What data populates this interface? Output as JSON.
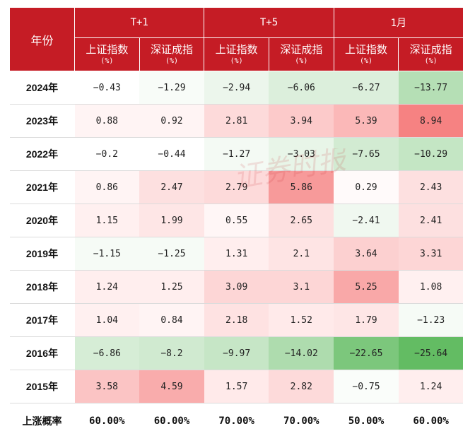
{
  "header": {
    "year_label": "年份",
    "groups": [
      {
        "label": "T+1",
        "cols": [
          "上证指数",
          "深证成指"
        ]
      },
      {
        "label": "T+5",
        "cols": [
          "上证指数",
          "深证成指"
        ]
      },
      {
        "label": "1月",
        "cols": [
          "上证指数",
          "深证成指"
        ]
      }
    ],
    "unit": "(%)"
  },
  "rows": [
    {
      "year": "2024年",
      "values": [
        "-0.43",
        "-1.29",
        "-2.94",
        "-6.06",
        "-6.27",
        "-13.77"
      ],
      "bg": [
        "#ffffff",
        "#f8fcf8",
        "#ecf6ec",
        "#dcefdc",
        "#dcefdc",
        "#b5dfb5"
      ]
    },
    {
      "year": "2023年",
      "values": [
        "0.88",
        "0.92",
        "2.81",
        "3.94",
        "5.39",
        "8.94"
      ],
      "bg": [
        "#fff4f4",
        "#fff4f4",
        "#fddada",
        "#fccaca",
        "#fbb8b8",
        "#f68282"
      ]
    },
    {
      "year": "2022年",
      "values": [
        "-0.2",
        "-0.44",
        "-1.27",
        "-3.03",
        "-7.65",
        "-10.29"
      ],
      "bg": [
        "#ffffff",
        "#ffffff",
        "#f4faf4",
        "#e8f5e8",
        "#d2ebd2",
        "#c4e6c4"
      ]
    },
    {
      "year": "2021年",
      "values": [
        "0.86",
        "2.47",
        "2.79",
        "5.86",
        "0.29",
        "2.43"
      ],
      "bg": [
        "#fff4f4",
        "#fde0e0",
        "#fddada",
        "#f79a9a",
        "#fffafa",
        "#fde0e0"
      ]
    },
    {
      "year": "2020年",
      "values": [
        "1.15",
        "1.99",
        "0.55",
        "2.65",
        "-2.41",
        "2.41"
      ],
      "bg": [
        "#fff0f0",
        "#fee6e6",
        "#fff6f6",
        "#fde0e0",
        "#f0f8f0",
        "#fde0e0"
      ]
    },
    {
      "year": "2019年",
      "values": [
        "-1.15",
        "-1.25",
        "1.31",
        "2.1",
        "3.64",
        "3.31"
      ],
      "bg": [
        "#f6fbf6",
        "#f6fbf6",
        "#ffeeee",
        "#fee4e4",
        "#fcd0d0",
        "#fdd6d6"
      ]
    },
    {
      "year": "2018年",
      "values": [
        "1.24",
        "1.25",
        "3.09",
        "3.1",
        "5.25",
        "1.08"
      ],
      "bg": [
        "#ffeeee",
        "#ffeeee",
        "#fdd6d6",
        "#fdd6d6",
        "#f9a8a8",
        "#fff0f0"
      ]
    },
    {
      "year": "2017年",
      "values": [
        "1.04",
        "0.84",
        "2.18",
        "1.52",
        "1.79",
        "-1.23"
      ],
      "bg": [
        "#fff0f0",
        "#fff4f4",
        "#fee2e2",
        "#ffeaea",
        "#fee6e6",
        "#f6fbf6"
      ]
    },
    {
      "year": "2016年",
      "values": [
        "-6.86",
        "-8.2",
        "-9.97",
        "-14.02",
        "-22.65",
        "-25.64"
      ],
      "bg": [
        "#d6edd6",
        "#d0ead0",
        "#c6e6c6",
        "#aedcae",
        "#7cc77c",
        "#63bc63"
      ]
    },
    {
      "year": "2015年",
      "values": [
        "3.58",
        "4.59",
        "1.57",
        "2.82",
        "-0.75",
        "1.24"
      ],
      "bg": [
        "#fbc4c4",
        "#f9acac",
        "#ffeaea",
        "#fddada",
        "#fafdfa",
        "#ffeeee"
      ]
    }
  ],
  "probability": {
    "label": "上涨概率",
    "values": [
      "60.00%",
      "60.00%",
      "70.00%",
      "70.00%",
      "50.00%",
      "60.00%"
    ]
  },
  "watermark": "证券时报"
}
